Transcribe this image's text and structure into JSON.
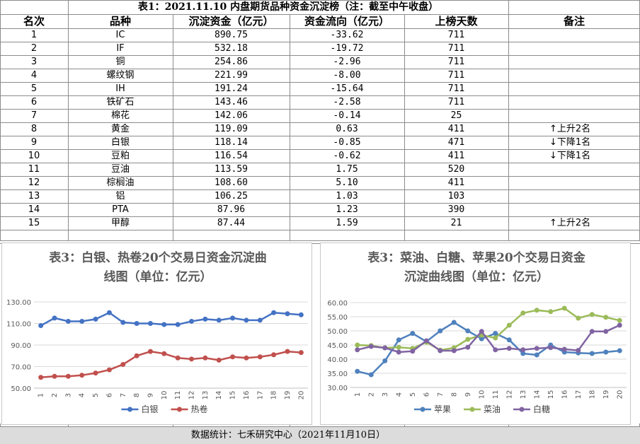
{
  "table": {
    "title": "表1：2021.11.10 内盘期货品种资金沉淀榜（注：截至中午收盘）",
    "headers": [
      "名次",
      "品种",
      "沉淀资金（亿元）",
      "资金流向（亿元）",
      "上榜天数",
      "备注"
    ],
    "rows": [
      {
        "rank": "1",
        "name": "IC",
        "capital": "890.75",
        "flow": "-33.62",
        "days": "711",
        "note": ""
      },
      {
        "rank": "2",
        "name": "IF",
        "capital": "532.18",
        "flow": "-19.72",
        "days": "711",
        "note": ""
      },
      {
        "rank": "3",
        "name": "铜",
        "capital": "254.86",
        "flow": "-2.96",
        "days": "711",
        "note": ""
      },
      {
        "rank": "4",
        "name": "螺纹钢",
        "capital": "221.99",
        "flow": "-8.00",
        "days": "711",
        "note": ""
      },
      {
        "rank": "5",
        "name": "IH",
        "capital": "191.24",
        "flow": "-15.64",
        "days": "711",
        "note": ""
      },
      {
        "rank": "6",
        "name": "铁矿石",
        "capital": "143.46",
        "flow": "-2.58",
        "days": "711",
        "note": ""
      },
      {
        "rank": "7",
        "name": "棉花",
        "capital": "142.06",
        "flow": "-0.14",
        "days": "25",
        "note": ""
      },
      {
        "rank": "8",
        "name": "黄金",
        "capital": "119.09",
        "flow": "0.63",
        "days": "411",
        "note": "上升2名",
        "arrow": "↑"
      },
      {
        "rank": "9",
        "name": "白银",
        "capital": "118.14",
        "flow": "-0.85",
        "days": "471",
        "note": "下降1名",
        "arrow": "↓"
      },
      {
        "rank": "10",
        "name": "豆粕",
        "capital": "116.54",
        "flow": "-0.62",
        "days": "411",
        "note": "下降1名",
        "arrow": "↓"
      },
      {
        "rank": "11",
        "name": "豆油",
        "capital": "113.59",
        "flow": "1.75",
        "days": "520",
        "note": ""
      },
      {
        "rank": "12",
        "name": "棕榈油",
        "capital": "108.60",
        "flow": "5.10",
        "days": "411",
        "note": ""
      },
      {
        "rank": "13",
        "name": "铝",
        "capital": "106.25",
        "flow": "1.03",
        "days": "103",
        "note": ""
      },
      {
        "rank": "14",
        "name": "PTA",
        "capital": "87.96",
        "flow": "1.23",
        "days": "390",
        "note": ""
      },
      {
        "rank": "15",
        "name": "甲醇",
        "capital": "87.44",
        "flow": "1.59",
        "days": "21",
        "note": "上升2名",
        "arrow": "↑"
      }
    ]
  },
  "chart_data": [
    {
      "type": "line",
      "title": "表3：白银、热卷20个交易日资金沉淀曲线图（单位：亿元）",
      "title_lines": [
        "表3：白银、热卷20个交易日资金沉淀曲",
        "线图（单位：亿元）"
      ],
      "x": [
        1,
        2,
        3,
        4,
        5,
        6,
        7,
        8,
        9,
        10,
        11,
        12,
        13,
        14,
        15,
        16,
        17,
        18,
        19,
        20
      ],
      "ylim": [
        50,
        130
      ],
      "yticks": [
        "50.00",
        "70.00",
        "90.00",
        "110.00",
        "130.00"
      ],
      "ytick_values": [
        50,
        70,
        90,
        110,
        130
      ],
      "grid": true,
      "legend_position": "bottom",
      "series": [
        {
          "name": "白银",
          "color": "#4472c4",
          "values": [
            108,
            115,
            112,
            112,
            114,
            120,
            111,
            110,
            110,
            109,
            109,
            112,
            114,
            113,
            115,
            113,
            113,
            120,
            119,
            118
          ]
        },
        {
          "name": "热卷",
          "color": "#c0504d",
          "values": [
            60,
            61,
            61,
            62,
            64,
            67,
            72,
            80,
            84,
            82,
            78,
            77,
            78,
            76,
            79,
            78,
            79,
            81,
            84,
            83
          ]
        }
      ]
    },
    {
      "type": "line",
      "title": "表3：菜油、白糖、苹果20个交易日资金沉淀曲线图（单位：亿元）",
      "title_lines": [
        "表3：菜油、白糖、苹果20个交易日资金",
        "沉淀曲线图（单位：亿元）"
      ],
      "x": [
        1,
        2,
        3,
        4,
        5,
        6,
        7,
        8,
        9,
        10,
        11,
        12,
        13,
        14,
        15,
        16,
        17,
        18,
        19,
        20
      ],
      "ylim": [
        30,
        60
      ],
      "yticks": [
        "30.00",
        "35.00",
        "40.00",
        "45.00",
        "50.00",
        "55.00",
        "60.00"
      ],
      "ytick_values": [
        30,
        35,
        40,
        45,
        50,
        55,
        60
      ],
      "grid": true,
      "legend_position": "bottom",
      "series": [
        {
          "name": "苹果",
          "color": "#4f81bd",
          "values": [
            35.7,
            34.5,
            39.4,
            46.8,
            49.1,
            46.2,
            50,
            53,
            50,
            47.2,
            49.1,
            46.8,
            42,
            41.5,
            45,
            42.5,
            42.2,
            42,
            42.5,
            43
          ]
        },
        {
          "name": "菜油",
          "color": "#9bbb59",
          "values": [
            45,
            44.8,
            44,
            44.2,
            43.8,
            46,
            43.2,
            44,
            47,
            48.5,
            47.5,
            52,
            56.3,
            57.3,
            56.8,
            58,
            54.5,
            55.8,
            54.8,
            53.7
          ]
        },
        {
          "name": "白糖",
          "color": "#8064a2",
          "values": [
            43.3,
            44.5,
            44,
            42.5,
            42.8,
            46.5,
            43,
            43,
            44.2,
            49.8,
            43.3,
            43.8,
            43.3,
            43.8,
            44.1,
            43.5,
            43.1,
            49.8,
            49.8,
            52
          ]
        }
      ]
    }
  ],
  "footer": {
    "text": "数据统计：七禾研究中心（2021年11月10日）"
  }
}
